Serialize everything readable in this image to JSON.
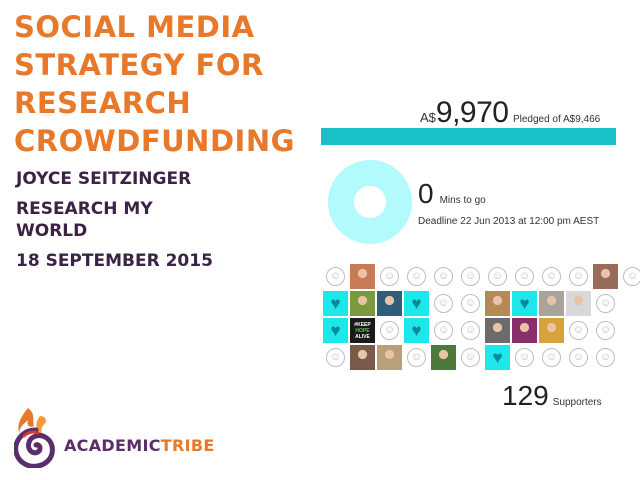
{
  "title": {
    "lines": [
      "SOCIAL MEDIA",
      "STRATEGY FOR",
      "RESEARCH",
      "CROWDFUNDING"
    ]
  },
  "author": "JOYCE SEITZINGER",
  "org": {
    "line1": "RESEARCH MY",
    "line2": "WORLD"
  },
  "date": "18 SEPTEMBER 2015",
  "campaign": {
    "currency": "A$",
    "amount": "9,970",
    "pledged_label": "Pledged of A$9,466",
    "progress_fraction": 1.0,
    "mins_value": "0",
    "mins_label": "Mins to go",
    "deadline": "Deadline 22 Jun 2013 at 12:00 pm AEST",
    "supporters_count": "129",
    "supporters_label": "Supporters"
  },
  "supporter_grid": [
    [
      "smiley",
      "photo:#c87a55",
      "smiley",
      "smiley",
      "smiley",
      "smiley",
      "smiley",
      "smiley",
      "smiley",
      "smiley",
      "photo:#9b6b5a",
      "smiley"
    ],
    [
      "heart",
      "photo:#7a9a3c",
      "photo:#2f5e7a",
      "heart",
      "smiley",
      "smiley",
      "photo:#b58a55",
      "heart",
      "photo:#a9a39b",
      "photo:#d8d8d8",
      "smiley"
    ],
    [
      "heart",
      "keep",
      "smiley",
      "heart",
      "smiley",
      "smiley",
      "photo:#6b6b6b",
      "photo:#8a2f6b",
      "photo:#d6a23a",
      "smiley",
      "smiley"
    ],
    [
      "smiley",
      "photo:#7a5a4a",
      "photo:#b8a07a",
      "smiley",
      "photo:#4d7a3a",
      "smiley",
      "heart",
      "smiley",
      "smiley",
      "smiley",
      "smiley"
    ]
  ],
  "keep_sign": {
    "l1": "#KEEP",
    "l2": "HOPE",
    "l3": "ALIVE"
  },
  "smiley_glyph": "☺",
  "heart_glyph": "♥",
  "brand": {
    "part1": "ACADEMIC",
    "part2": "TRIBE"
  },
  "colors": {
    "title_orange": "#e8782a",
    "text_purple": "#3b2346",
    "progress_teal": "#19c0c7",
    "donut_light": "#b3fafd",
    "heart_cyan": "#1ce7ea"
  }
}
